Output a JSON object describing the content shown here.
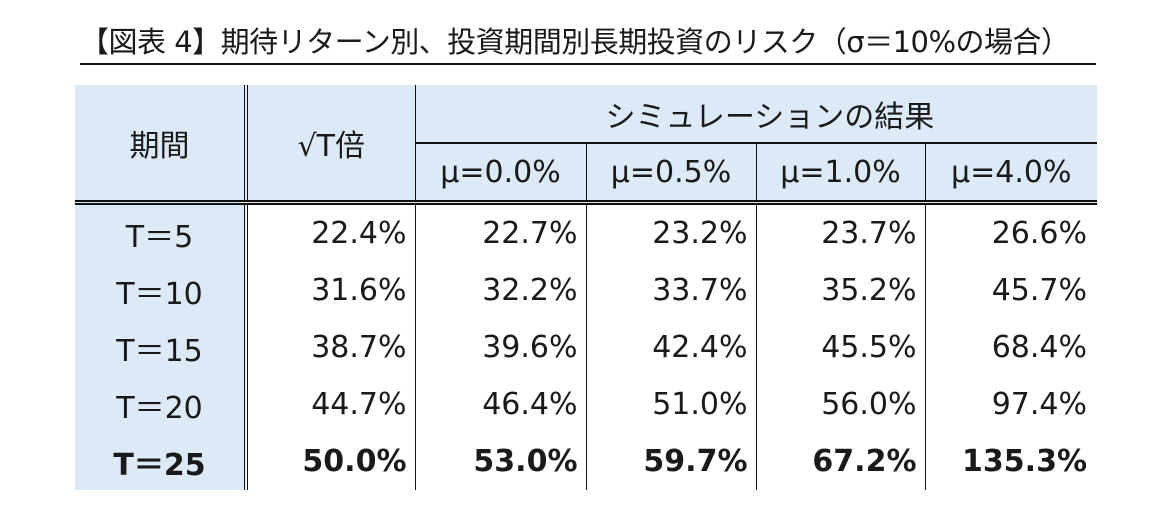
{
  "title": "【図表 4】期待リターン別、投資期間別長期投資のリスク（σ＝10%の場合）",
  "table": {
    "header": {
      "period": "期間",
      "sqrt_t": "√T倍",
      "simulation_group": "シミュレーションの結果",
      "mu_columns": [
        "μ=0.0%",
        "μ=0.5%",
        "μ=1.0%",
        "μ=4.0%"
      ]
    },
    "rows": [
      {
        "label": "T＝5",
        "values": [
          "22.4%",
          "22.7%",
          "23.2%",
          "23.7%",
          "26.6%"
        ],
        "bold": false
      },
      {
        "label": "T＝10",
        "values": [
          "31.6%",
          "32.2%",
          "33.7%",
          "35.2%",
          "45.7%"
        ],
        "bold": false
      },
      {
        "label": "T＝15",
        "values": [
          "38.7%",
          "39.6%",
          "42.4%",
          "45.5%",
          "68.4%"
        ],
        "bold": false
      },
      {
        "label": "T＝20",
        "values": [
          "44.7%",
          "46.4%",
          "51.0%",
          "56.0%",
          "97.4%"
        ],
        "bold": false
      },
      {
        "label": "T＝25",
        "values": [
          "50.0%",
          "53.0%",
          "59.7%",
          "67.2%",
          "135.3%"
        ],
        "bold": true
      }
    ]
  },
  "colors": {
    "header_bg": "#dce9f6",
    "border": "#111111",
    "text": "#1a1a1a"
  }
}
